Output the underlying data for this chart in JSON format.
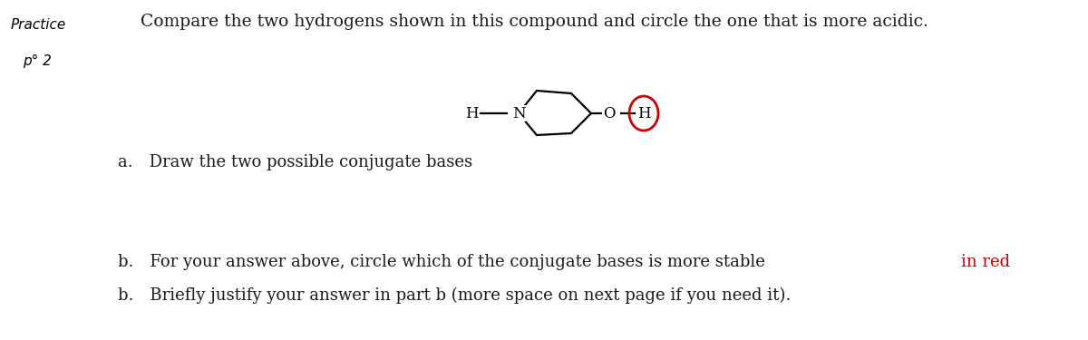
{
  "background_color": "#ffffff",
  "title_text": "Compare the two hydrogens shown in this compound and circle the one that is more acidic.",
  "title_fontsize": 13.5,
  "part_a_text": "a. Draw the two possible conjugate bases",
  "part_b1_text": "b. For your answer above, circle which of the conjugate bases is more stable",
  "part_b1_red": "in red",
  "part_b2_text": "b. Briefly justify your answer in part b (more space on next page if you need it).",
  "circle_color": "#cc0000",
  "text_color": "#1a1a1a",
  "red_color": "#cc0000",
  "handwriting_practice": "Practice",
  "handwriting_num": "p° 2"
}
